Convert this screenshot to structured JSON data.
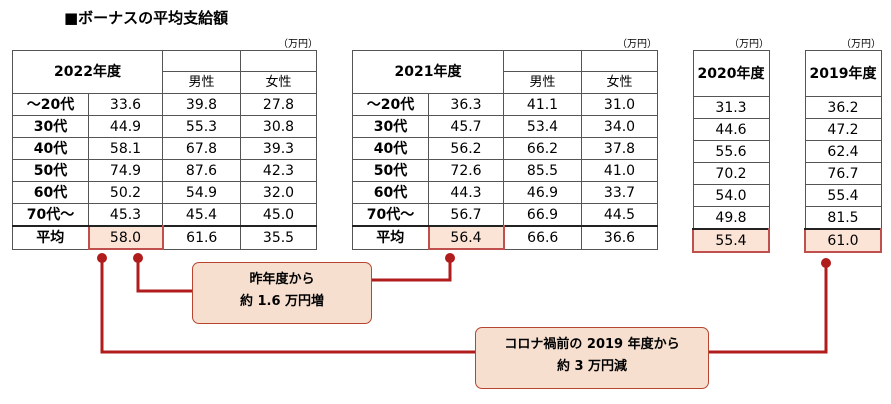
{
  "title": "■ボーナスの平均支給額",
  "unit": "（万円）",
  "avg_label": "平均",
  "rows": [
    "～20代",
    "30代",
    "40代",
    "50代",
    "60代",
    "70代～"
  ],
  "sub_male": "男性",
  "sub_female": "女性",
  "t2022": {
    "year": "2022年度",
    "rows": [
      [
        "33.6",
        "39.8",
        "27.8"
      ],
      [
        "44.9",
        "55.3",
        "30.8"
      ],
      [
        "58.1",
        "67.8",
        "39.3"
      ],
      [
        "74.9",
        "87.6",
        "42.3"
      ],
      [
        "50.2",
        "54.9",
        "32.0"
      ],
      [
        "45.3",
        "45.4",
        "45.0"
      ]
    ],
    "avg": [
      "58.0",
      "61.6",
      "35.5"
    ]
  },
  "t2021": {
    "year": "2021年度",
    "rows": [
      [
        "36.3",
        "41.1",
        "31.0"
      ],
      [
        "45.7",
        "53.4",
        "34.0"
      ],
      [
        "56.2",
        "66.2",
        "37.8"
      ],
      [
        "72.6",
        "85.5",
        "41.0"
      ],
      [
        "44.3",
        "46.9",
        "33.7"
      ],
      [
        "56.7",
        "66.9",
        "44.5"
      ]
    ],
    "avg": [
      "56.4",
      "66.6",
      "36.6"
    ]
  },
  "t2020": {
    "year": "2020年度",
    "rows": [
      "31.3",
      "44.6",
      "55.6",
      "70.2",
      "54.0",
      "49.8"
    ],
    "avg": "55.4"
  },
  "t2019": {
    "year": "2019年度",
    "rows": [
      "36.2",
      "47.2",
      "62.4",
      "76.7",
      "55.4",
      "81.5"
    ],
    "avg": "61.0"
  },
  "callout1": {
    "line1": "昨年度から",
    "line2": "約 1.6 万円増"
  },
  "callout2": {
    "line1": "コロナ禍前の 2019 年度から",
    "line2": "約 3 万円減"
  },
  "colors": {
    "accent": "#b01c1c",
    "highlight_fill": "#fbe3d6",
    "callout_fill": "#f6dfcf"
  }
}
